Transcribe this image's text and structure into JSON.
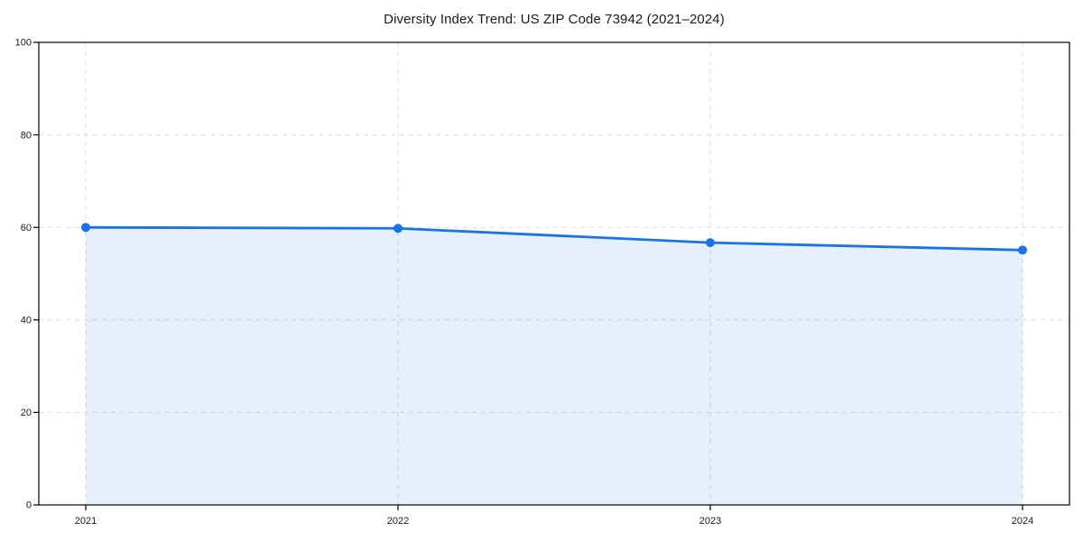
{
  "chart_data": {
    "type": "area",
    "title": "Diversity Index Trend: US ZIP Code 73942 (2021–2024)",
    "x": [
      "2021",
      "2022",
      "2023",
      "2024"
    ],
    "series": [
      {
        "name": "Diversity Index",
        "values": [
          60.0,
          59.8,
          56.7,
          55.1
        ]
      }
    ],
    "xlabel": "",
    "ylabel": "",
    "ylim": [
      0,
      100
    ],
    "yticks": [
      0,
      20,
      40,
      60,
      80,
      100
    ],
    "grid": true,
    "grid_style": "dashed",
    "legend": false,
    "marker": "circle",
    "colors": {
      "line": "#1a73e8",
      "fill": "#1a73e8",
      "fill_opacity": 0.11,
      "grid": "#dcdcdc",
      "axis": "#000000",
      "text": "#1a1a1a",
      "background": "#ffffff"
    }
  }
}
